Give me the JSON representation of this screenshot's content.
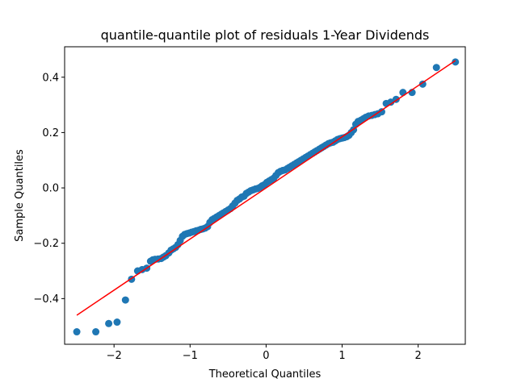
{
  "chart_data": {
    "type": "scatter",
    "title": "quantile-quantile plot of residuals 1-Year Dividends",
    "xlabel": "Theoretical Quantiles",
    "ylabel": "Sample Quantiles",
    "xlim": [
      -2.65,
      2.62
    ],
    "ylim": [
      -0.565,
      0.51
    ],
    "xticks": [
      -2,
      -1,
      0,
      1,
      2
    ],
    "xtick_labels": [
      "−2",
      "−1",
      "0",
      "1",
      "2"
    ],
    "yticks": [
      -0.4,
      -0.2,
      0.0,
      0.2,
      0.4
    ],
    "ytick_labels": [
      "−0.4",
      "−0.2",
      "0.0",
      "0.2",
      "0.4"
    ],
    "grid": false,
    "colors": {
      "points": "#1f77b4",
      "line": "#ff0000"
    },
    "reference_line": {
      "x": [
        -2.49,
        2.49
      ],
      "y": [
        -0.46,
        0.46
      ]
    },
    "series": [
      {
        "x": [
          -2.49,
          -2.24,
          -2.07,
          -1.96,
          -1.85,
          -1.77,
          -1.69,
          -1.63,
          -1.57,
          -1.52,
          -1.49,
          -1.46,
          -1.42,
          -1.38,
          -1.35,
          -1.32,
          -1.28,
          -1.25,
          -1.22,
          -1.19,
          -1.16,
          -1.13,
          -1.1,
          -1.07,
          -1.04,
          -1.01,
          -0.98,
          -0.95,
          -0.92,
          -0.89,
          -0.86,
          -0.83,
          -0.8,
          -0.77,
          -0.74,
          -0.71,
          -0.68,
          -0.65,
          -0.62,
          -0.59,
          -0.56,
          -0.53,
          -0.5,
          -0.47,
          -0.44,
          -0.41,
          -0.38,
          -0.35,
          -0.32,
          -0.29,
          -0.26,
          -0.23,
          -0.2,
          -0.17,
          -0.14,
          -0.11,
          -0.08,
          -0.05,
          -0.02,
          0.01,
          0.04,
          0.07,
          0.1,
          0.13,
          0.16,
          0.19,
          0.22,
          0.25,
          0.28,
          0.31,
          0.34,
          0.37,
          0.4,
          0.43,
          0.46,
          0.49,
          0.52,
          0.55,
          0.58,
          0.61,
          0.64,
          0.67,
          0.7,
          0.73,
          0.76,
          0.79,
          0.82,
          0.85,
          0.88,
          0.91,
          0.94,
          0.97,
          1.0,
          1.03,
          1.06,
          1.09,
          1.12,
          1.15,
          1.18,
          1.21,
          1.25,
          1.28,
          1.31,
          1.35,
          1.39,
          1.43,
          1.47,
          1.52,
          1.58,
          1.64,
          1.71,
          1.8,
          1.92,
          2.06,
          2.24,
          2.49
        ],
        "y": [
          -0.52,
          -0.52,
          -0.49,
          -0.485,
          -0.405,
          -0.33,
          -0.3,
          -0.295,
          -0.29,
          -0.265,
          -0.26,
          -0.258,
          -0.257,
          -0.255,
          -0.25,
          -0.245,
          -0.235,
          -0.225,
          -0.22,
          -0.215,
          -0.205,
          -0.19,
          -0.175,
          -0.168,
          -0.165,
          -0.163,
          -0.16,
          -0.158,
          -0.155,
          -0.153,
          -0.15,
          -0.148,
          -0.145,
          -0.14,
          -0.125,
          -0.115,
          -0.11,
          -0.105,
          -0.1,
          -0.095,
          -0.09,
          -0.085,
          -0.08,
          -0.075,
          -0.065,
          -0.055,
          -0.045,
          -0.04,
          -0.033,
          -0.03,
          -0.02,
          -0.015,
          -0.01,
          -0.007,
          -0.004,
          -0.002,
          0.002,
          0.008,
          0.012,
          0.02,
          0.025,
          0.03,
          0.035,
          0.045,
          0.055,
          0.06,
          0.063,
          0.065,
          0.07,
          0.075,
          0.08,
          0.085,
          0.09,
          0.095,
          0.1,
          0.105,
          0.11,
          0.115,
          0.12,
          0.125,
          0.13,
          0.135,
          0.14,
          0.145,
          0.15,
          0.155,
          0.16,
          0.163,
          0.165,
          0.17,
          0.175,
          0.178,
          0.18,
          0.182,
          0.185,
          0.19,
          0.2,
          0.21,
          0.23,
          0.24,
          0.245,
          0.25,
          0.255,
          0.26,
          0.262,
          0.265,
          0.268,
          0.275,
          0.305,
          0.31,
          0.32,
          0.345,
          0.345,
          0.375,
          0.435,
          0.455
        ]
      }
    ]
  }
}
